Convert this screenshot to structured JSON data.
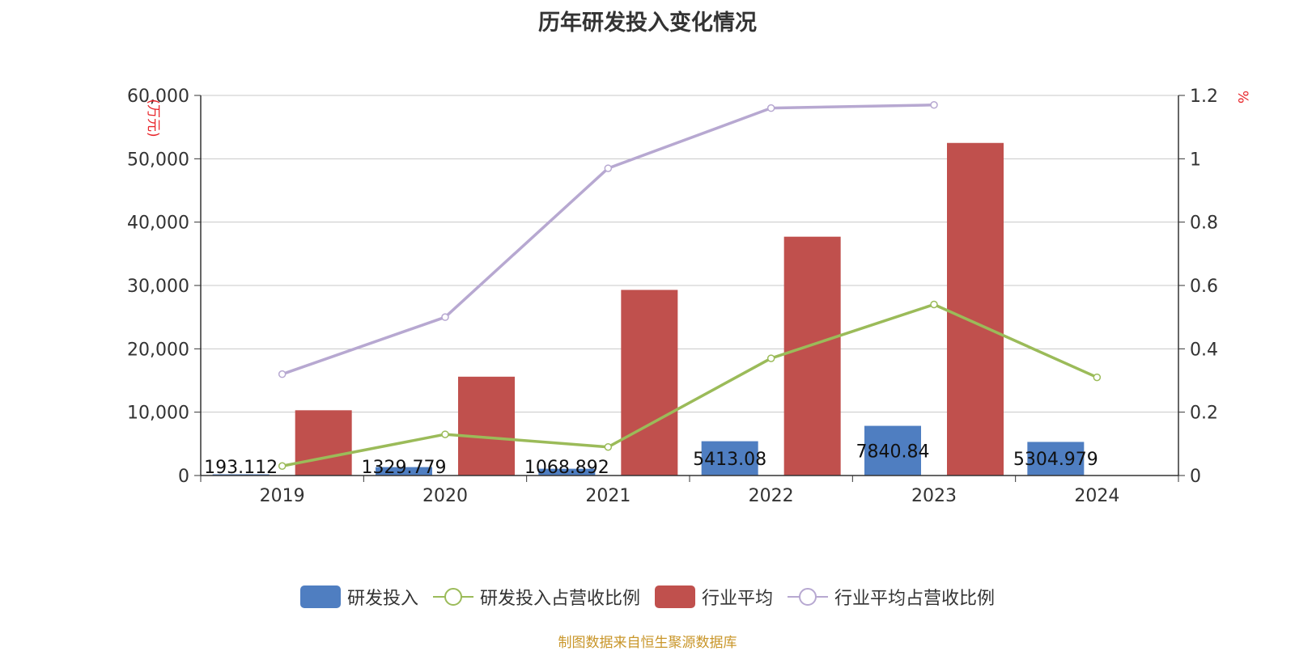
{
  "chart_data": {
    "type": "bar",
    "title": "历年研发投入变化情况",
    "categories": [
      "2019",
      "2020",
      "2021",
      "2022",
      "2023",
      "2024"
    ],
    "y_left": {
      "label": "(万元)",
      "lim": [
        0,
        60000
      ],
      "ticks": [
        "0",
        "10,000",
        "20,000",
        "30,000",
        "40,000",
        "50,000",
        "60,000"
      ],
      "tick_values": [
        0,
        10000,
        20000,
        30000,
        40000,
        50000,
        60000
      ]
    },
    "y_right": {
      "label": "%",
      "lim": [
        0,
        1.2
      ],
      "ticks": [
        "0",
        "0.2",
        "0.4",
        "0.6",
        "0.8",
        "1",
        "1.2"
      ],
      "tick_values": [
        0,
        0.2,
        0.4,
        0.6,
        0.8,
        1.0,
        1.2
      ]
    },
    "grid": true,
    "legend_position": "bottom",
    "series": [
      {
        "name": "研发投入",
        "kind": "bar",
        "axis": "left",
        "color": "#4f7ec1",
        "values": [
          193.112,
          1329.779,
          1068.892,
          5413.08,
          7840.84,
          5304.979
        ],
        "labels": [
          "193.112",
          "1329.779",
          "1068.892",
          "5413.08",
          "7840.84",
          "5304.979"
        ]
      },
      {
        "name": "研发投入占营收比例",
        "kind": "line",
        "axis": "right",
        "color": "#9bbb59",
        "values": [
          0.03,
          0.13,
          0.09,
          0.37,
          0.54,
          0.31
        ]
      },
      {
        "name": "行业平均",
        "kind": "bar",
        "axis": "left",
        "color": "#c0504d",
        "values": [
          10300,
          15600,
          29300,
          37700,
          52500,
          null
        ]
      },
      {
        "name": "行业平均占营收比例",
        "kind": "line",
        "axis": "right",
        "color": "#b7a8d1",
        "values": [
          0.32,
          0.5,
          0.97,
          1.16,
          1.17,
          null
        ]
      }
    ]
  },
  "source_note": "制图数据来自恒生聚源数据库"
}
